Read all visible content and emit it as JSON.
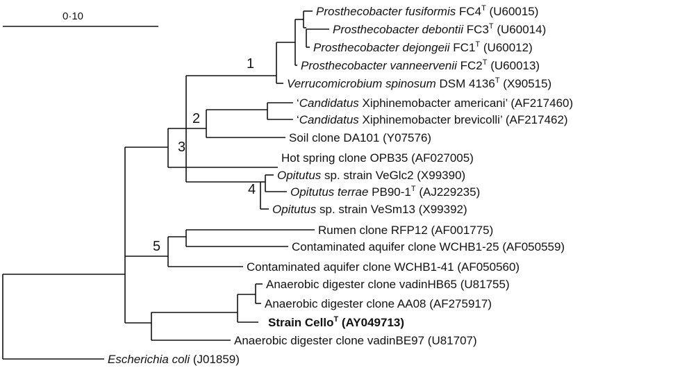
{
  "scale_bar": {
    "label": "0·10"
  },
  "node_labels": [
    "1",
    "2",
    "3",
    "4",
    "5"
  ],
  "taxa": [
    {
      "key": "pfus",
      "parts": [
        {
          "t": "Prosthecobacter fusiformis",
          "i": true
        },
        {
          "t": " FC4"
        },
        {
          "t": "T",
          "sup": true
        },
        {
          "t": " (U60015)"
        }
      ]
    },
    {
      "key": "pdeb",
      "parts": [
        {
          "t": "Prosthecobacter debontii",
          "i": true
        },
        {
          "t": " FC3"
        },
        {
          "t": "T",
          "sup": true
        },
        {
          "t": " (U60014)"
        }
      ]
    },
    {
      "key": "pdej",
      "parts": [
        {
          "t": "Prosthecobacter dejongeii",
          "i": true
        },
        {
          "t": " FC1"
        },
        {
          "t": "T",
          "sup": true
        },
        {
          "t": " (U60012)"
        }
      ]
    },
    {
      "key": "pvan",
      "parts": [
        {
          "t": "Prosthecobacter vanneervenii",
          "i": true
        },
        {
          "t": " FC2"
        },
        {
          "t": "T",
          "sup": true
        },
        {
          "t": " (U60013)"
        }
      ]
    },
    {
      "key": "vspi",
      "parts": [
        {
          "t": "Verrucomicrobium spinosum",
          "i": true
        },
        {
          "t": " DSM 4136"
        },
        {
          "t": "T",
          "sup": true
        },
        {
          "t": " (X90515)"
        }
      ]
    },
    {
      "key": "xame",
      "parts": [
        {
          "t": "‘"
        },
        {
          "t": "Candidatus",
          "i": true
        },
        {
          "t": " Xiphinemobacter americani’ (AF217460)"
        }
      ]
    },
    {
      "key": "xbre",
      "parts": [
        {
          "t": "‘"
        },
        {
          "t": "Candidatus",
          "i": true
        },
        {
          "t": " Xiphinemobacter brevicolli’ (AF217462)"
        }
      ]
    },
    {
      "key": "soil",
      "parts": [
        {
          "t": "Soil clone DA101 (Y07576)"
        }
      ]
    },
    {
      "key": "hots",
      "parts": [
        {
          "t": "Hot spring clone OPB35 (AF027005)"
        }
      ]
    },
    {
      "key": "ove2",
      "parts": [
        {
          "t": "Opitutus",
          "i": true
        },
        {
          "t": " sp. strain VeGlc2 (X99390)"
        }
      ]
    },
    {
      "key": "oter",
      "parts": [
        {
          "t": "Opitutus terrae",
          "i": true
        },
        {
          "t": " PB90-1"
        },
        {
          "t": "T",
          "sup": true
        },
        {
          "t": " (AJ229235)"
        }
      ]
    },
    {
      "key": "ove13",
      "parts": [
        {
          "t": "Opitutus",
          "i": true
        },
        {
          "t": " sp. strain VeSm13 (X99392)"
        }
      ]
    },
    {
      "key": "rumen",
      "parts": [
        {
          "t": "Rumen clone RFP12 (AF001775)"
        }
      ]
    },
    {
      "key": "cw25",
      "parts": [
        {
          "t": "Contaminated aquifer clone WCHB1-25 (AF050559)"
        }
      ]
    },
    {
      "key": "cw41",
      "parts": [
        {
          "t": "Contaminated aquifer clone WCHB1-41 (AF050560)"
        }
      ]
    },
    {
      "key": "hb65",
      "parts": [
        {
          "t": "Anaerobic digester clone vadinHB65 (U81755)"
        }
      ]
    },
    {
      "key": "aa08",
      "parts": [
        {
          "t": "Anaerobic digester clone AA08 (AF275917)"
        }
      ]
    },
    {
      "key": "cello",
      "bold": true,
      "parts": [
        {
          "t": "Strain Cello"
        },
        {
          "t": "T",
          "sup": true
        },
        {
          "t": " (AY049713)"
        }
      ]
    },
    {
      "key": "be97",
      "parts": [
        {
          "t": "Anaerobic digester clone vadinBE97 (U81707)"
        }
      ]
    },
    {
      "key": "ecoli",
      "parts": [
        {
          "t": "Escherichia coli",
          "i": true
        },
        {
          "t": " (J01859)"
        }
      ]
    }
  ]
}
